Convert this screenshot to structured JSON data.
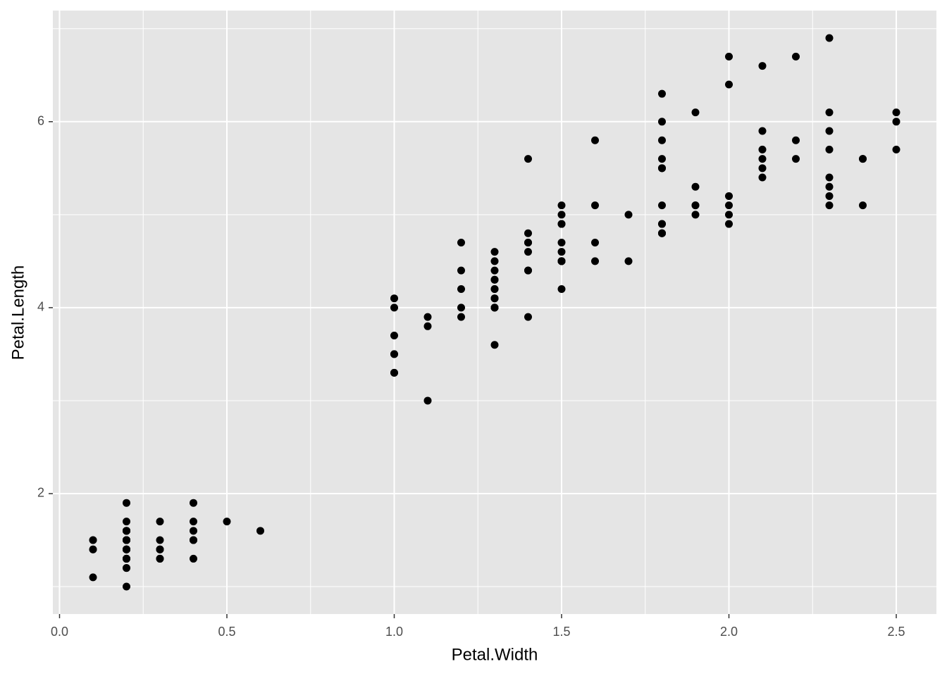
{
  "chart_data": {
    "type": "scatter",
    "x_label": "Petal.Width",
    "y_label": "Petal.Length",
    "color": "#000000",
    "grid": true,
    "background": "#e5e5e5",
    "xlim": [
      -0.02,
      2.62
    ],
    "ylim": [
      0.705,
      7.195
    ],
    "xticks": [
      {
        "value": 0,
        "label": "0.0"
      },
      0.5,
      {
        "value": 1,
        "label": "1.0"
      },
      1.5,
      {
        "value": 2,
        "label": "2.0"
      },
      2.5
    ],
    "yticks": [
      2,
      4,
      6
    ],
    "x": [
      0.2,
      0.2,
      0.2,
      0.2,
      0.2,
      0.4,
      0.3,
      0.2,
      0.2,
      0.1,
      0.2,
      0.2,
      0.1,
      0.1,
      0.2,
      0.4,
      0.4,
      0.3,
      0.3,
      0.3,
      0.2,
      0.4,
      0.2,
      0.5,
      0.2,
      0.2,
      0.4,
      0.2,
      0.2,
      0.2,
      0.2,
      0.4,
      0.1,
      0.2,
      0.2,
      0.2,
      0.2,
      0.1,
      0.2,
      0.2,
      0.3,
      0.3,
      0.2,
      0.6,
      0.4,
      0.3,
      0.2,
      0.2,
      0.2,
      0.2,
      1.4,
      1.5,
      1.5,
      1.3,
      1.5,
      1.3,
      1.6,
      1.0,
      1.3,
      1.4,
      1.0,
      1.5,
      1.0,
      1.4,
      1.3,
      1.4,
      1.5,
      1.0,
      1.5,
      1.1,
      1.8,
      1.3,
      1.5,
      1.2,
      1.3,
      1.4,
      1.4,
      1.7,
      1.5,
      1.0,
      1.1,
      1.0,
      1.2,
      1.6,
      1.5,
      1.6,
      1.5,
      1.3,
      1.3,
      1.3,
      1.2,
      1.4,
      1.2,
      1.0,
      1.3,
      1.2,
      1.3,
      1.3,
      1.1,
      1.3,
      2.5,
      1.9,
      2.1,
      1.8,
      2.2,
      2.1,
      1.7,
      1.8,
      1.8,
      2.5,
      2.0,
      1.9,
      2.1,
      2.0,
      2.4,
      2.3,
      1.8,
      2.2,
      2.3,
      1.5,
      2.3,
      2.0,
      2.0,
      1.8,
      2.1,
      1.8,
      1.8,
      1.8,
      2.1,
      1.6,
      1.9,
      2.0,
      2.2,
      1.5,
      1.4,
      2.3,
      2.4,
      1.8,
      1.8,
      2.1,
      2.4,
      2.3,
      1.9,
      2.3,
      2.5,
      2.3,
      1.9,
      2.0,
      2.3,
      1.8
    ],
    "values": [
      1.4,
      1.4,
      1.3,
      1.5,
      1.4,
      1.7,
      1.4,
      1.5,
      1.4,
      1.5,
      1.5,
      1.6,
      1.4,
      1.1,
      1.2,
      1.5,
      1.3,
      1.4,
      1.7,
      1.5,
      1.7,
      1.5,
      1.0,
      1.7,
      1.9,
      1.6,
      1.6,
      1.5,
      1.4,
      1.6,
      1.6,
      1.5,
      1.5,
      1.4,
      1.5,
      1.2,
      1.3,
      1.4,
      1.3,
      1.5,
      1.3,
      1.3,
      1.3,
      1.6,
      1.9,
      1.4,
      1.6,
      1.4,
      1.5,
      1.4,
      4.7,
      4.5,
      4.9,
      4.0,
      4.6,
      4.5,
      4.7,
      3.3,
      4.6,
      3.9,
      3.5,
      4.2,
      4.0,
      4.7,
      3.6,
      4.4,
      4.5,
      4.1,
      4.5,
      3.9,
      4.8,
      4.0,
      4.9,
      4.7,
      4.3,
      4.4,
      4.8,
      5.0,
      4.5,
      3.5,
      3.8,
      3.7,
      3.9,
      5.1,
      4.5,
      4.5,
      4.7,
      4.4,
      4.1,
      4.0,
      4.4,
      4.6,
      4.0,
      3.3,
      4.2,
      4.2,
      4.2,
      4.3,
      3.0,
      4.1,
      6.0,
      5.1,
      5.9,
      5.6,
      5.8,
      6.6,
      4.5,
      6.3,
      5.8,
      6.1,
      5.1,
      5.3,
      5.5,
      5.0,
      5.1,
      5.3,
      5.5,
      6.7,
      6.9,
      5.0,
      5.7,
      4.9,
      6.7,
      4.9,
      5.7,
      6.0,
      4.8,
      4.9,
      5.6,
      5.8,
      6.1,
      6.4,
      5.6,
      5.1,
      5.6,
      6.1,
      5.6,
      5.5,
      4.8,
      5.4,
      5.6,
      5.1,
      5.1,
      5.9,
      5.7,
      5.2,
      5.0,
      5.2,
      5.4,
      5.1
    ]
  }
}
